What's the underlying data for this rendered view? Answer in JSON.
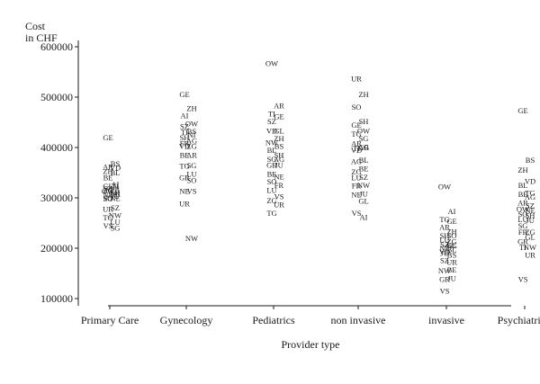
{
  "chart_data": {
    "type": "scatter",
    "ylabel_line1": "Cost",
    "ylabel_line2": "in CHF",
    "xlabel": "Provider type",
    "categories": [
      "Primary Care",
      "Gynecology",
      "Pediatrics",
      "non invasive",
      "invasive",
      "Psychiatrists"
    ],
    "ylim": [
      100000,
      600000
    ],
    "yticks": [
      100000,
      200000,
      300000,
      400000,
      500000,
      600000
    ],
    "ytick_labels": [
      "100000",
      "200000",
      "300000",
      "400000",
      "500000",
      "600000"
    ],
    "series": [
      {
        "category": "Primary Care",
        "points": [
          {
            "label": "GE",
            "y": 420000
          },
          {
            "label": "BS",
            "y": 368000
          },
          {
            "label": "AR",
            "y": 362000
          },
          {
            "label": "VD",
            "y": 360000
          },
          {
            "label": "ZH",
            "y": 353000
          },
          {
            "label": "BL",
            "y": 350000
          },
          {
            "label": "BE",
            "y": 340000
          },
          {
            "label": "AI",
            "y": 327000
          },
          {
            "label": "GL",
            "y": 323000
          },
          {
            "label": "TI",
            "y": 323000
          },
          {
            "label": "SZ",
            "y": 319000
          },
          {
            "label": "FR",
            "y": 317000
          },
          {
            "label": "OW",
            "y": 313000
          },
          {
            "label": "SH",
            "y": 311000
          },
          {
            "label": "ZG",
            "y": 315000
          },
          {
            "label": "UR",
            "y": 308000
          },
          {
            "label": "NE",
            "y": 306000
          },
          {
            "label": "JU",
            "y": 304000
          },
          {
            "label": "SG",
            "y": 300000
          },
          {
            "label": "NE",
            "y": 299000
          },
          {
            "label": "SO",
            "y": 298000
          },
          {
            "label": "SZ",
            "y": 280000
          },
          {
            "label": "UR",
            "y": 278000
          },
          {
            "label": "NW",
            "y": 265000
          },
          {
            "label": "TG",
            "y": 261000
          },
          {
            "label": "LU",
            "y": 252000
          },
          {
            "label": "VS",
            "y": 245000
          },
          {
            "label": "SG",
            "y": 240000
          }
        ]
      },
      {
        "category": "Gynecology",
        "points": [
          {
            "label": "GE",
            "y": 505000
          },
          {
            "label": "ZH",
            "y": 478000
          },
          {
            "label": "AI",
            "y": 463000
          },
          {
            "label": "OW",
            "y": 447000
          },
          {
            "label": "SZ",
            "y": 442000
          },
          {
            "label": "BS",
            "y": 432000
          },
          {
            "label": "TI",
            "y": 430000
          },
          {
            "label": "NI",
            "y": 425000
          },
          {
            "label": "SH",
            "y": 420000
          },
          {
            "label": "AG",
            "y": 413000
          },
          {
            "label": "FR",
            "y": 408000
          },
          {
            "label": "ZG",
            "y": 403000
          },
          {
            "label": "VD",
            "y": 403000
          },
          {
            "label": "AR",
            "y": 385000
          },
          {
            "label": "BE",
            "y": 385000
          },
          {
            "label": "SG",
            "y": 364000
          },
          {
            "label": "TG",
            "y": 363000
          },
          {
            "label": "LU",
            "y": 347000
          },
          {
            "label": "GR",
            "y": 340000
          },
          {
            "label": "SO",
            "y": 335000
          },
          {
            "label": "NE",
            "y": 313000
          },
          {
            "label": "VS",
            "y": 313000
          },
          {
            "label": "UR",
            "y": 288000
          },
          {
            "label": "NW",
            "y": 220000
          }
        ]
      },
      {
        "category": "Pediatrics",
        "points": [
          {
            "label": "OW",
            "y": 567000
          },
          {
            "label": "AR",
            "y": 483000
          },
          {
            "label": "TI",
            "y": 467000
          },
          {
            "label": "GE",
            "y": 462000
          },
          {
            "label": "SZ",
            "y": 452000
          },
          {
            "label": "GL",
            "y": 433000
          },
          {
            "label": "VD",
            "y": 433000
          },
          {
            "label": "ZH",
            "y": 418000
          },
          {
            "label": "NW",
            "y": 410000
          },
          {
            "label": "BS",
            "y": 403000
          },
          {
            "label": "BL",
            "y": 395000
          },
          {
            "label": "SH",
            "y": 385000
          },
          {
            "label": "SG",
            "y": 377000
          },
          {
            "label": "AG",
            "y": 377000
          },
          {
            "label": "GR",
            "y": 365000
          },
          {
            "label": "JU",
            "y": 365000
          },
          {
            "label": "BE",
            "y": 347000
          },
          {
            "label": "NE",
            "y": 342000
          },
          {
            "label": "SO",
            "y": 332000
          },
          {
            "label": "FR",
            "y": 325000
          },
          {
            "label": "LU",
            "y": 315000
          },
          {
            "label": "VS",
            "y": 303000
          },
          {
            "label": "ZG",
            "y": 295000
          },
          {
            "label": "UR",
            "y": 287000
          },
          {
            "label": "TG",
            "y": 270000
          }
        ]
      },
      {
        "category": "non invasive",
        "points": [
          {
            "label": "UR",
            "y": 537000
          },
          {
            "label": "ZH",
            "y": 505000
          },
          {
            "label": "SO",
            "y": 480000
          },
          {
            "label": "SH",
            "y": 452000
          },
          {
            "label": "GE",
            "y": 445000
          },
          {
            "label": "OW",
            "y": 433000
          },
          {
            "label": "TG",
            "y": 427000
          },
          {
            "label": "SG",
            "y": 418000
          },
          {
            "label": "AR",
            "y": 408000
          },
          {
            "label": "AG",
            "y": 401000
          },
          {
            "label": "TI",
            "y": 398000
          },
          {
            "label": "GR",
            "y": 400000
          },
          {
            "label": "VD",
            "y": 395000
          },
          {
            "label": "BL",
            "y": 375000
          },
          {
            "label": "AG",
            "y": 372000
          },
          {
            "label": "BE",
            "y": 358000
          },
          {
            "label": "ZG",
            "y": 352000
          },
          {
            "label": "SZ",
            "y": 341000
          },
          {
            "label": "LU",
            "y": 340000
          },
          {
            "label": "NW",
            "y": 325000
          },
          {
            "label": "FR",
            "y": 324000
          },
          {
            "label": "JU",
            "y": 308000
          },
          {
            "label": "NE",
            "y": 306000
          },
          {
            "label": "GL",
            "y": 294000
          },
          {
            "label": "VS",
            "y": 270000
          },
          {
            "label": "AI",
            "y": 262000
          }
        ]
      },
      {
        "category": "invasive",
        "points": [
          {
            "label": "OW",
            "y": 322000
          },
          {
            "label": "AI",
            "y": 273000
          },
          {
            "label": "TG",
            "y": 257000
          },
          {
            "label": "GE",
            "y": 254000
          },
          {
            "label": "AR",
            "y": 242000
          },
          {
            "label": "ZH",
            "y": 233000
          },
          {
            "label": "SH",
            "y": 225000
          },
          {
            "label": "SO",
            "y": 225000
          },
          {
            "label": "LU",
            "y": 217000
          },
          {
            "label": "ZG",
            "y": 213000
          },
          {
            "label": "SZ",
            "y": 207000
          },
          {
            "label": "GL",
            "y": 205000
          },
          {
            "label": "NE",
            "y": 200000
          },
          {
            "label": "BL",
            "y": 197000
          },
          {
            "label": "VD",
            "y": 193000
          },
          {
            "label": "SG",
            "y": 205000
          },
          {
            "label": "JU",
            "y": 190000
          },
          {
            "label": "BS",
            "y": 187000
          },
          {
            "label": "SZ",
            "y": 176000
          },
          {
            "label": "UR",
            "y": 172000
          },
          {
            "label": "NW",
            "y": 155000
          },
          {
            "label": "BE",
            "y": 157000
          },
          {
            "label": "GR",
            "y": 138000
          },
          {
            "label": "JU",
            "y": 140000
          },
          {
            "label": "VS",
            "y": 115000
          }
        ]
      },
      {
        "category": "Psychiatrists",
        "points": [
          {
            "label": "GE",
            "y": 473000
          },
          {
            "label": "BS",
            "y": 375000
          },
          {
            "label": "ZH",
            "y": 355000
          },
          {
            "label": "VD",
            "y": 333000
          },
          {
            "label": "BL",
            "y": 325000
          },
          {
            "label": "TG",
            "y": 310000
          },
          {
            "label": "BE",
            "y": 307000
          },
          {
            "label": "AG",
            "y": 302000
          },
          {
            "label": "AR",
            "y": 290000
          },
          {
            "label": "SZ",
            "y": 285000
          },
          {
            "label": "OW",
            "y": 278000
          },
          {
            "label": "NE",
            "y": 275000
          },
          {
            "label": "SO",
            "y": 268000
          },
          {
            "label": "SH",
            "y": 265000
          },
          {
            "label": "LU",
            "y": 257000
          },
          {
            "label": "JU",
            "y": 255000
          },
          {
            "label": "SG",
            "y": 245000
          },
          {
            "label": "ZG",
            "y": 232000
          },
          {
            "label": "FR",
            "y": 232000
          },
          {
            "label": "GL",
            "y": 222000
          },
          {
            "label": "GR",
            "y": 213000
          },
          {
            "label": "NW",
            "y": 202000
          },
          {
            "label": "TI",
            "y": 202000
          },
          {
            "label": "UR",
            "y": 187000
          },
          {
            "label": "VS",
            "y": 138000
          }
        ]
      }
    ]
  }
}
